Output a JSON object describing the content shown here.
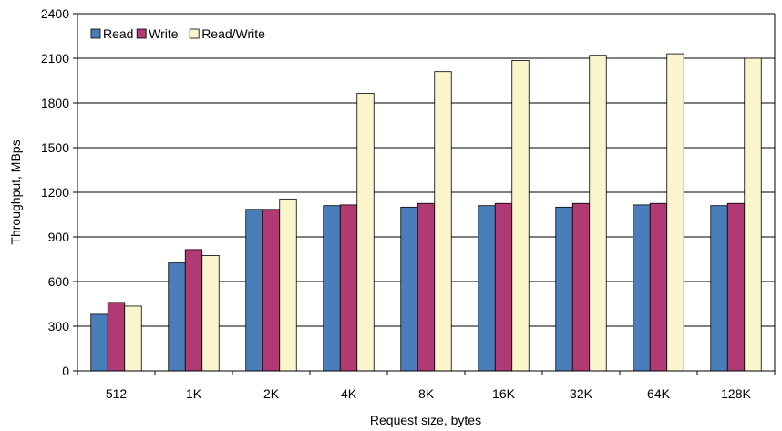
{
  "chart_data": {
    "type": "bar",
    "title": "",
    "xlabel": "Request size, bytes",
    "ylabel": "Throughput, MBps",
    "categories": [
      "512",
      "1K",
      "2K",
      "4K",
      "8K",
      "16K",
      "32K",
      "64K",
      "128K"
    ],
    "ylim": [
      0,
      2400
    ],
    "yticks": [
      0,
      300,
      600,
      900,
      1200,
      1500,
      1800,
      2100,
      2400
    ],
    "grid": true,
    "legend_position": "top-left",
    "series": [
      {
        "name": "Read",
        "color": "#4a7ebb",
        "values": [
          380,
          725,
          1085,
          1110,
          1100,
          1110,
          1100,
          1115,
          1110
        ]
      },
      {
        "name": "Write",
        "color": "#b03a73",
        "values": [
          460,
          815,
          1085,
          1115,
          1125,
          1125,
          1125,
          1125,
          1125
        ]
      },
      {
        "name": "Read/Write",
        "color": "#fbf5cc",
        "values": [
          435,
          775,
          1155,
          1865,
          2010,
          2085,
          2120,
          2130,
          2100
        ]
      }
    ]
  }
}
